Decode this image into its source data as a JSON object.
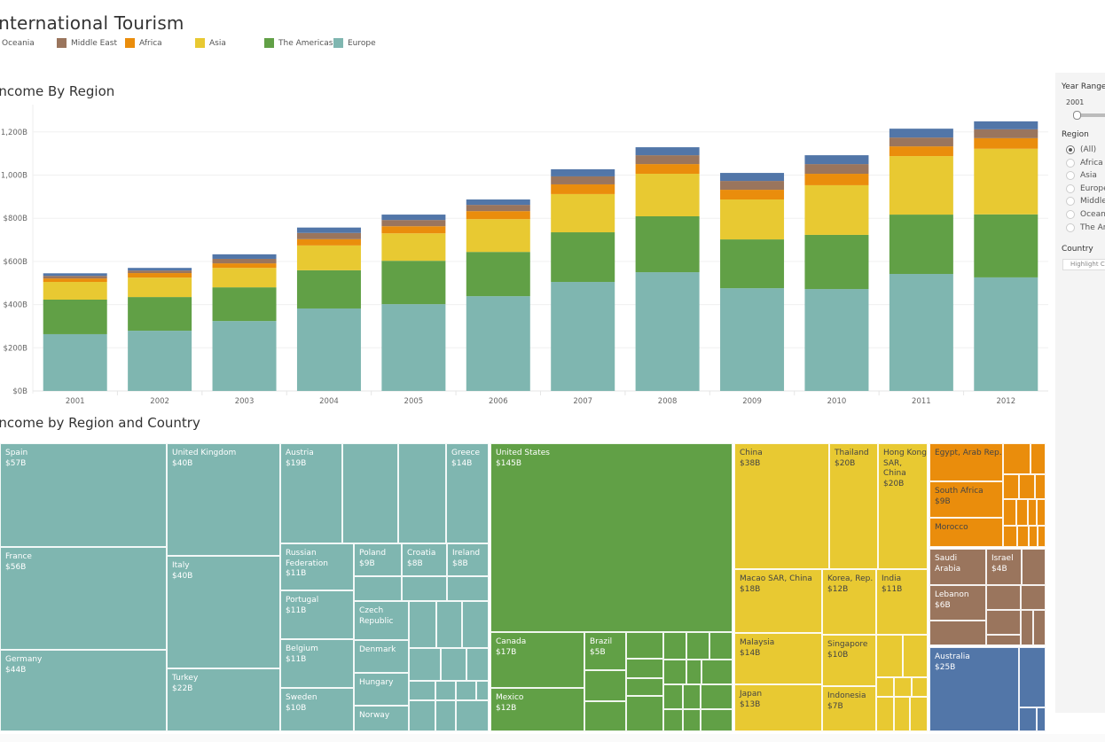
{
  "dashboard": {
    "title": "International Tourism",
    "legend": [
      {
        "label": "Oceania",
        "color": "#4e79a7"
      },
      {
        "label": "Middle East",
        "color": "#9c755f"
      },
      {
        "label": "Africa",
        "color": "#f28e2b"
      },
      {
        "label": "Asia",
        "color": "#edc948"
      },
      {
        "label": "The Americas",
        "color": "#59a14f"
      },
      {
        "label": "Europe",
        "color": "#76b7b2"
      }
    ],
    "bar_chart_title": "Income By Region",
    "treemap_title": "Income by Region and Country"
  },
  "colors": {
    "Oceania": "#5276a8",
    "Middle East": "#9a755d",
    "Africa": "#ea8d0c",
    "Asia": "#e8c932",
    "The Americas": "#61a046",
    "Europe": "#7fb6b0"
  },
  "filters": {
    "year_range_label": "Year Range",
    "year_range_value": "2001",
    "region_label": "Region",
    "region_options": [
      {
        "label": "(All)",
        "selected": true
      },
      {
        "label": "Africa",
        "selected": false
      },
      {
        "label": "Asia",
        "selected": false
      },
      {
        "label": "Europe",
        "selected": false
      },
      {
        "label": "Middle East",
        "selected": false
      },
      {
        "label": "Oceania",
        "selected": false
      },
      {
        "label": "The Americas",
        "selected": false
      }
    ],
    "country_label": "Country",
    "country_placeholder": "Highlight Country"
  },
  "chart_data": [
    {
      "type": "bar",
      "stacked": true,
      "title": "Income By Region",
      "xlabel": "",
      "ylabel": "",
      "categories": [
        "2001",
        "2002",
        "2003",
        "2004",
        "2005",
        "2006",
        "2007",
        "2008",
        "2009",
        "2010",
        "2011",
        "2012"
      ],
      "y_ticks": [
        "$0B",
        "$200B",
        "$400B",
        "$600B",
        "$800B",
        "1,000B",
        "1,200B"
      ],
      "y_tick_values": [
        0,
        200,
        400,
        600,
        800,
        1000,
        1200
      ],
      "ylim": [
        0,
        1300
      ],
      "grid": true,
      "legend": "top",
      "series": [
        {
          "name": "Europe",
          "values": [
            263,
            279,
            324,
            382,
            402,
            439,
            505,
            550,
            476,
            472,
            542,
            526
          ]
        },
        {
          "name": "The Americas",
          "values": [
            160,
            156,
            156,
            177,
            201,
            205,
            230,
            259,
            226,
            251,
            275,
            292
          ]
        },
        {
          "name": "Asia",
          "values": [
            82,
            90,
            90,
            115,
            127,
            152,
            177,
            197,
            185,
            230,
            271,
            304
          ]
        },
        {
          "name": "Africa",
          "values": [
            16,
            21,
            21,
            29,
            33,
            37,
            45,
            45,
            45,
            53,
            45,
            49
          ]
        },
        {
          "name": "Middle East",
          "values": [
            12,
            12,
            21,
            29,
            29,
            29,
            37,
            41,
            41,
            45,
            41,
            41
          ]
        },
        {
          "name": "Oceania",
          "values": [
            12,
            12,
            21,
            25,
            25,
            25,
            33,
            37,
            37,
            41,
            41,
            37
          ]
        }
      ]
    },
    {
      "type": "treemap",
      "title": "Income by Region and Country",
      "cells": [
        {
          "region": "Europe",
          "name": "Spain",
          "value": "$57B"
        },
        {
          "region": "Europe",
          "name": "France",
          "value": "$56B"
        },
        {
          "region": "Europe",
          "name": "Germany",
          "value": "$44B"
        },
        {
          "region": "Europe",
          "name": "United Kingdom",
          "value": "$40B"
        },
        {
          "region": "Europe",
          "name": "Italy",
          "value": "$40B"
        },
        {
          "region": "Europe",
          "name": "Turkey",
          "value": "$22B"
        },
        {
          "region": "Europe",
          "name": "Austria",
          "value": "$19B"
        },
        {
          "region": "Europe",
          "name": "Greece",
          "value": "$14B"
        },
        {
          "region": "Europe",
          "name": "Russian Federation",
          "value": "$11B"
        },
        {
          "region": "Europe",
          "name": "Poland",
          "value": "$9B"
        },
        {
          "region": "Europe",
          "name": "Croatia",
          "value": "$8B"
        },
        {
          "region": "Europe",
          "name": "Ireland",
          "value": "$8B"
        },
        {
          "region": "Europe",
          "name": "Portugal",
          "value": "$11B"
        },
        {
          "region": "Europe",
          "name": "Czech Republic",
          "value": ""
        },
        {
          "region": "Europe",
          "name": "Belgium",
          "value": "$11B"
        },
        {
          "region": "Europe",
          "name": "Denmark",
          "value": ""
        },
        {
          "region": "Europe",
          "name": "Hungary",
          "value": ""
        },
        {
          "region": "Europe",
          "name": "Sweden",
          "value": "$10B"
        },
        {
          "region": "Europe",
          "name": "Norway",
          "value": ""
        },
        {
          "region": "The Americas",
          "name": "United States",
          "value": "$145B"
        },
        {
          "region": "The Americas",
          "name": "Canada",
          "value": "$17B"
        },
        {
          "region": "The Americas",
          "name": "Mexico",
          "value": "$12B"
        },
        {
          "region": "The Americas",
          "name": "Brazil",
          "value": "$5B"
        },
        {
          "region": "Asia",
          "name": "China",
          "value": "$38B"
        },
        {
          "region": "Asia",
          "name": "Thailand",
          "value": "$20B"
        },
        {
          "region": "Asia",
          "name": "Hong Kong SAR, China",
          "value": "$20B"
        },
        {
          "region": "Asia",
          "name": "Macao SAR, China",
          "value": "$18B"
        },
        {
          "region": "Asia",
          "name": "Korea, Rep.",
          "value": "$12B"
        },
        {
          "region": "Asia",
          "name": "India",
          "value": "$11B"
        },
        {
          "region": "Asia",
          "name": "Malaysia",
          "value": "$14B"
        },
        {
          "region": "Asia",
          "name": "Singapore",
          "value": "$10B"
        },
        {
          "region": "Asia",
          "name": "Japan",
          "value": "$13B"
        },
        {
          "region": "Asia",
          "name": "Indonesia",
          "value": "$7B"
        },
        {
          "region": "Africa",
          "name": "Egypt, Arab Rep.",
          "value": ""
        },
        {
          "region": "Africa",
          "name": "South Africa",
          "value": "$9B"
        },
        {
          "region": "Africa",
          "name": "Morocco",
          "value": ""
        },
        {
          "region": "Middle East",
          "name": "Saudi Arabia",
          "value": ""
        },
        {
          "region": "Middle East",
          "name": "Israel",
          "value": "$4B"
        },
        {
          "region": "Middle East",
          "name": "Lebanon",
          "value": "$6B"
        },
        {
          "region": "Oceania",
          "name": "Australia",
          "value": "$25B"
        }
      ]
    }
  ]
}
